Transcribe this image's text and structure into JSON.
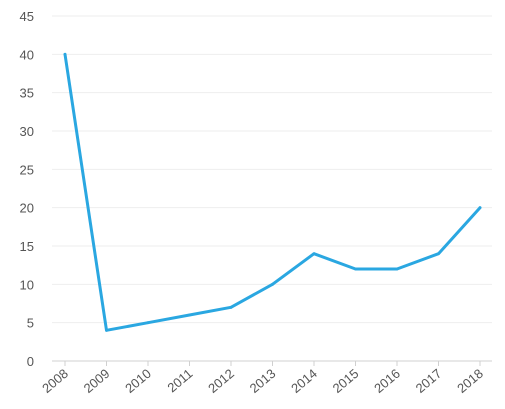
{
  "chart_data": {
    "type": "line",
    "x": [
      "2008",
      "2009",
      "2010",
      "2011",
      "2012",
      "2013",
      "2014",
      "2015",
      "2016",
      "2017",
      "2018"
    ],
    "series": [
      {
        "values": [
          40,
          4,
          5,
          6,
          7,
          10,
          14,
          12,
          12,
          14,
          20
        ],
        "color": "#2aa7e1"
      }
    ],
    "y_ticks": [
      "0",
      "5",
      "10",
      "15",
      "20",
      "25",
      "30",
      "35",
      "40",
      "45"
    ],
    "ylim": [
      0,
      45
    ],
    "grid": true,
    "legend": false
  }
}
